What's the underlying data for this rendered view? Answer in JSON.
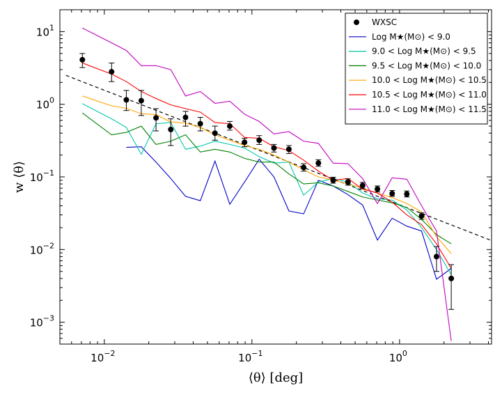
{
  "chart_data": {
    "type": "line",
    "x_scale": "log",
    "y_scale": "log",
    "xlim": [
      0.005,
      4.2
    ],
    "ylim": [
      0.0005,
      20
    ],
    "xlabel": "⟨θ⟩ [deg]",
    "ylabel": "w ⟨θ⟩",
    "x_ticks": [
      {
        "value": 0.01,
        "base": "10",
        "exp": "−2"
      },
      {
        "value": 0.1,
        "base": "10",
        "exp": "−1"
      },
      {
        "value": 1,
        "base": "10",
        "exp": "0"
      }
    ],
    "y_ticks": [
      {
        "value": 0.001,
        "base": "10",
        "exp": "−3"
      },
      {
        "value": 0.01,
        "base": "10",
        "exp": "−2"
      },
      {
        "value": 0.1,
        "base": "10",
        "exp": "−1"
      },
      {
        "value": 1,
        "base": "10",
        "exp": "0"
      },
      {
        "value": 10,
        "base": "10",
        "exp": "1"
      }
    ],
    "legend_position": "top-right",
    "wxsc": {
      "name": "WXSC",
      "color": "#000000",
      "points": [
        {
          "x": 0.0071,
          "y": 4.1,
          "lo": 3.2,
          "hi": 5.0
        },
        {
          "x": 0.0112,
          "y": 2.8,
          "lo": 2.05,
          "hi": 3.7
        },
        {
          "x": 0.0141,
          "y": 1.15,
          "lo": 0.82,
          "hi": 1.55
        },
        {
          "x": 0.0178,
          "y": 1.12,
          "lo": 0.7,
          "hi": 1.55
        },
        {
          "x": 0.0224,
          "y": 0.65,
          "lo": 0.43,
          "hi": 0.87
        },
        {
          "x": 0.0282,
          "y": 0.45,
          "lo": 0.27,
          "hi": 0.63
        },
        {
          "x": 0.0355,
          "y": 0.66,
          "lo": 0.5,
          "hi": 0.8
        },
        {
          "x": 0.0447,
          "y": 0.54,
          "lo": 0.43,
          "hi": 0.66
        },
        {
          "x": 0.0562,
          "y": 0.4,
          "lo": 0.32,
          "hi": 0.5
        },
        {
          "x": 0.0708,
          "y": 0.5,
          "lo": 0.44,
          "hi": 0.58
        },
        {
          "x": 0.0891,
          "y": 0.3,
          "lo": 0.26,
          "hi": 0.34
        },
        {
          "x": 0.112,
          "y": 0.32,
          "lo": 0.28,
          "hi": 0.37
        },
        {
          "x": 0.141,
          "y": 0.25,
          "lo": 0.22,
          "hi": 0.28
        },
        {
          "x": 0.178,
          "y": 0.24,
          "lo": 0.21,
          "hi": 0.27
        },
        {
          "x": 0.224,
          "y": 0.135,
          "lo": 0.12,
          "hi": 0.152
        },
        {
          "x": 0.282,
          "y": 0.155,
          "lo": 0.14,
          "hi": 0.172
        },
        {
          "x": 0.355,
          "y": 0.09,
          "lo": 0.082,
          "hi": 0.099
        },
        {
          "x": 0.447,
          "y": 0.085,
          "lo": 0.077,
          "hi": 0.094
        },
        {
          "x": 0.562,
          "y": 0.076,
          "lo": 0.069,
          "hi": 0.084
        },
        {
          "x": 0.708,
          "y": 0.068,
          "lo": 0.062,
          "hi": 0.075
        },
        {
          "x": 0.891,
          "y": 0.059,
          "lo": 0.054,
          "hi": 0.065
        },
        {
          "x": 1.12,
          "y": 0.058,
          "lo": 0.053,
          "hi": 0.064
        },
        {
          "x": 1.41,
          "y": 0.029,
          "lo": 0.026,
          "hi": 0.032
        },
        {
          "x": 1.78,
          "y": 0.008,
          "lo": 0.005,
          "hi": 0.011
        },
        {
          "x": 2.24,
          "y": 0.004,
          "lo": 0.0015,
          "hi": 0.0062
        }
      ]
    },
    "series": [
      {
        "name": "Log M★(M⊙) < 9.0",
        "color": "#0000cc",
        "x": [
          0.0141,
          0.0178,
          0.0224,
          0.0282,
          0.0355,
          0.0447,
          0.0562,
          0.0708,
          0.0891,
          0.112,
          0.141,
          0.178,
          0.224,
          0.282,
          0.355,
          0.447,
          0.562,
          0.708,
          0.891,
          1.12,
          1.41,
          1.78,
          2.24
        ],
        "y": [
          0.255,
          0.26,
          0.16,
          0.095,
          0.054,
          0.047,
          0.165,
          0.042,
          0.085,
          0.175,
          0.1,
          0.034,
          0.031,
          0.09,
          0.075,
          0.057,
          0.041,
          0.0135,
          0.027,
          0.021,
          0.018,
          0.0039,
          0.0055
        ]
      },
      {
        "name": "9.0 < Log M★(M⊙) < 9.5",
        "color": "#00c8a8",
        "x": [
          0.0071,
          0.0112,
          0.0141,
          0.0178,
          0.0224,
          0.0282,
          0.0355,
          0.0447,
          0.0562,
          0.0708,
          0.0891,
          0.112,
          0.141,
          0.178,
          0.224,
          0.282,
          0.355,
          0.447,
          0.562,
          0.708,
          0.891,
          1.12,
          1.41,
          1.78,
          2.24
        ],
        "y": [
          1.02,
          0.63,
          0.48,
          0.205,
          0.54,
          0.56,
          0.24,
          0.265,
          0.31,
          0.28,
          0.25,
          0.19,
          0.155,
          0.16,
          0.056,
          0.085,
          0.095,
          0.085,
          0.06,
          0.05,
          0.048,
          0.035,
          0.02,
          0.01,
          0.0045
        ]
      },
      {
        "name": "9.5 < Log M★(M⊙) < 10.0",
        "color": "#008000",
        "x": [
          0.0071,
          0.0112,
          0.0141,
          0.0178,
          0.0224,
          0.0282,
          0.0355,
          0.0447,
          0.0562,
          0.0708,
          0.0891,
          0.112,
          0.141,
          0.178,
          0.224,
          0.282,
          0.355,
          0.447,
          0.562,
          0.708,
          0.891,
          1.12,
          1.41,
          1.78,
          2.24
        ],
        "y": [
          0.76,
          0.38,
          0.41,
          0.5,
          0.28,
          0.31,
          0.38,
          0.22,
          0.24,
          0.22,
          0.18,
          0.16,
          0.16,
          0.11,
          0.08,
          0.083,
          0.075,
          0.063,
          0.053,
          0.048,
          0.044,
          0.038,
          0.026,
          0.016,
          0.012
        ]
      },
      {
        "name": "10.0 < Log M★(M⊙) < 10.5",
        "color": "#ffa500",
        "x": [
          0.0071,
          0.0112,
          0.0141,
          0.0178,
          0.0224,
          0.0282,
          0.0355,
          0.0447,
          0.0562,
          0.0708,
          0.0891,
          0.112,
          0.141,
          0.178,
          0.224,
          0.282,
          0.355,
          0.447,
          0.562,
          0.708,
          0.891,
          1.12,
          1.41,
          1.78,
          2.24
        ],
        "y": [
          1.3,
          0.95,
          0.88,
          0.74,
          0.72,
          0.57,
          0.55,
          0.48,
          0.38,
          0.32,
          0.27,
          0.24,
          0.2,
          0.16,
          0.125,
          0.1,
          0.09,
          0.08,
          0.07,
          0.06,
          0.052,
          0.043,
          0.033,
          0.015,
          0.0088
        ]
      },
      {
        "name": "10.5 < Log M★(M⊙) < 11.0",
        "color": "#ff0000",
        "x": [
          0.0071,
          0.0112,
          0.0141,
          0.0178,
          0.0224,
          0.0282,
          0.0355,
          0.0447,
          0.0562,
          0.0708,
          0.0891,
          0.112,
          0.141,
          0.178,
          0.224,
          0.282,
          0.355,
          0.447,
          0.562,
          0.708,
          0.891,
          1.12,
          1.41,
          1.78,
          2.24
        ],
        "y": [
          3.7,
          2.6,
          2.05,
          1.5,
          1.2,
          0.98,
          0.87,
          0.78,
          0.56,
          0.54,
          0.35,
          0.34,
          0.26,
          0.23,
          0.17,
          0.12,
          0.09,
          0.095,
          0.068,
          0.06,
          0.045,
          0.03,
          0.022,
          0.012,
          0.0055
        ]
      },
      {
        "name": "11.0 < Log M★(M⊙) < 11.5",
        "color": "#c000c0",
        "x": [
          0.0071,
          0.0112,
          0.0141,
          0.0178,
          0.0224,
          0.0282,
          0.0355,
          0.0447,
          0.0562,
          0.0708,
          0.0891,
          0.112,
          0.141,
          0.178,
          0.224,
          0.282,
          0.355,
          0.447,
          0.562,
          0.708,
          0.891,
          1.12,
          1.41,
          1.78,
          2.24
        ],
        "y": [
          11.2,
          7.0,
          5.5,
          3.4,
          3.4,
          3.0,
          1.3,
          1.5,
          1.03,
          1.1,
          0.73,
          0.58,
          0.39,
          0.42,
          0.31,
          0.29,
          0.155,
          0.152,
          0.095,
          0.043,
          0.097,
          0.093,
          0.04,
          0.018,
          0.00055
        ]
      }
    ],
    "power_law_fit": {
      "style": "dashed",
      "color": "#000000",
      "x": [
        0.0055,
        4.2
      ],
      "y": [
        2.5,
        0.0133
      ]
    }
  }
}
